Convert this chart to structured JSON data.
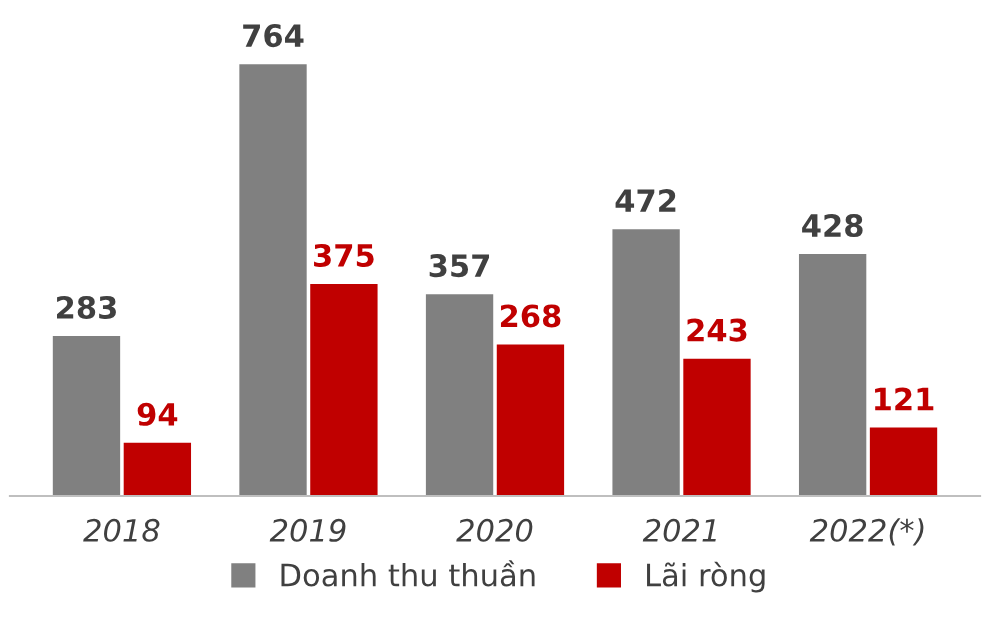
{
  "chart_data": {
    "type": "bar",
    "categories": [
      "2018",
      "2019",
      "2020",
      "2021",
      "2022(*)"
    ],
    "series": [
      {
        "name": "Doanh thu thuần",
        "color": "#808080",
        "values": [
          283,
          764,
          357,
          472,
          428
        ]
      },
      {
        "name": "Lãi ròng",
        "color": "#c00000",
        "values": [
          94,
          375,
          268,
          243,
          121
        ]
      }
    ],
    "data_labels": true,
    "legend": "bottom",
    "tick_labels": "x",
    "grid": false
  }
}
